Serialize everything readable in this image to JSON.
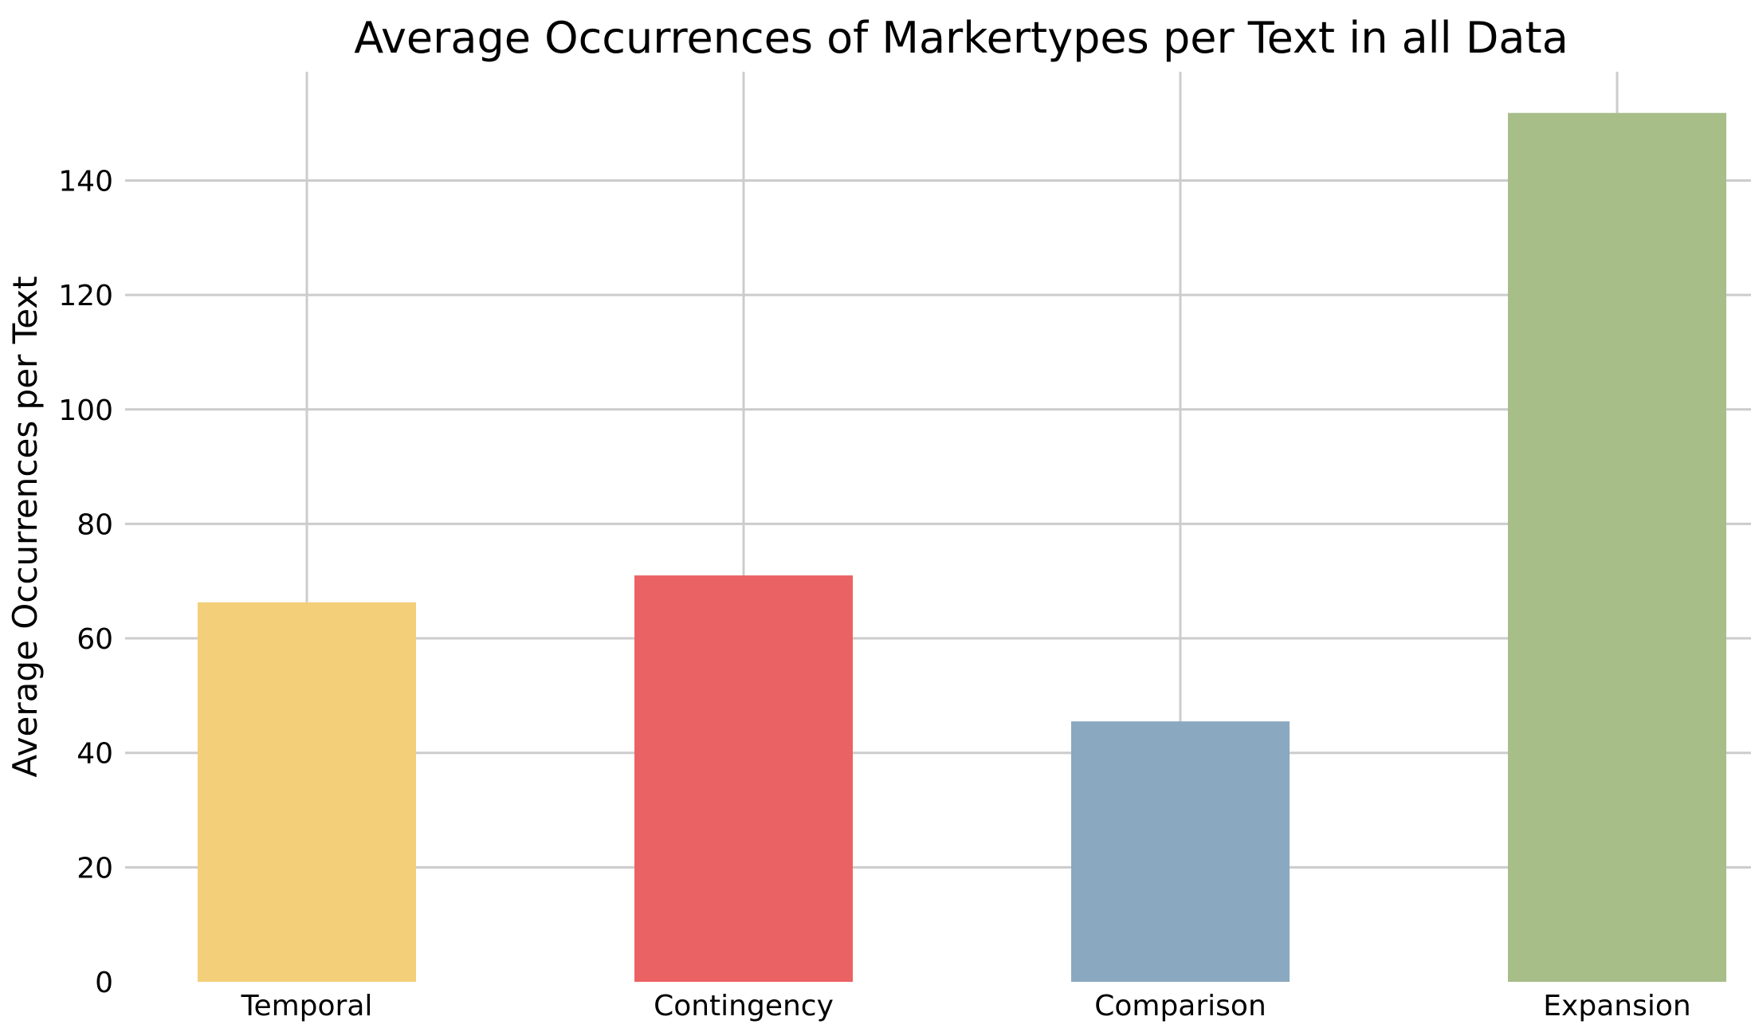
{
  "chart_data": {
    "type": "bar",
    "title": "Average Occurrences of Markertypes per Text in all Data",
    "xlabel": "",
    "ylabel": "Average Occurrences per Text",
    "categories": [
      "Temporal",
      "Contingency",
      "Comparison",
      "Expansion"
    ],
    "values": [
      66.3,
      71.0,
      45.5,
      151.8
    ],
    "colors": [
      "#f3cf79",
      "#eb6264",
      "#8aa8c0",
      "#a7be89"
    ],
    "ylim": [
      0,
      159
    ],
    "yticks": [
      0,
      20,
      40,
      60,
      80,
      100,
      120,
      140
    ],
    "ytick_labels": [
      "0",
      "20",
      "40",
      "60",
      "80",
      "100",
      "120",
      "140"
    ],
    "grid": true,
    "legend": "none"
  }
}
